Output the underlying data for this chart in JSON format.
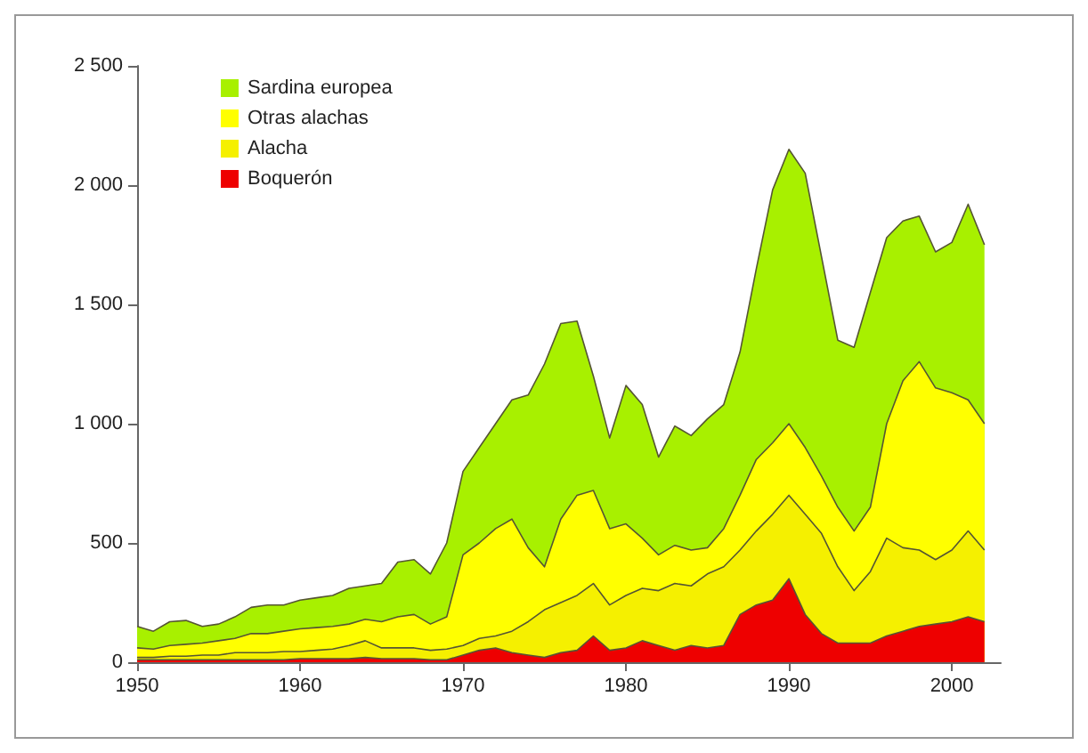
{
  "chart_data": {
    "type": "area",
    "stacked": true,
    "legend": "top left",
    "grid": false,
    "marker": "none",
    "x": [
      1950,
      1951,
      1952,
      1953,
      1954,
      1955,
      1956,
      1957,
      1958,
      1959,
      1960,
      1961,
      1962,
      1963,
      1964,
      1965,
      1966,
      1967,
      1968,
      1969,
      1970,
      1971,
      1972,
      1973,
      1974,
      1975,
      1976,
      1977,
      1978,
      1979,
      1980,
      1981,
      1982,
      1983,
      1984,
      1985,
      1986,
      1987,
      1988,
      1989,
      1990,
      1991,
      1992,
      1993,
      1994,
      1995,
      1996,
      1997,
      1998,
      1999,
      2000,
      2001,
      2002
    ],
    "xlim": [
      1950,
      2003
    ],
    "xticks": [
      1950,
      1960,
      1970,
      1980,
      1990,
      2000
    ],
    "ylim": [
      0,
      2500
    ],
    "yticks": [
      0,
      500,
      {
        "value": 1000,
        "label": "1 000"
      },
      {
        "value": 1500,
        "label": "1 500"
      },
      {
        "value": 2000,
        "label": "2 000"
      },
      {
        "value": 2500,
        "label": "2 500"
      }
    ],
    "series": [
      {
        "name": "Boquerón",
        "color": "#ee0000",
        "values": [
          10,
          10,
          10,
          10,
          10,
          10,
          10,
          10,
          10,
          10,
          15,
          15,
          15,
          15,
          20,
          15,
          15,
          15,
          10,
          10,
          30,
          50,
          60,
          40,
          30,
          20,
          40,
          50,
          110,
          50,
          60,
          90,
          70,
          50,
          70,
          60,
          70,
          200,
          240,
          260,
          350,
          200,
          120,
          80,
          80,
          80,
          110,
          130,
          150,
          160,
          170,
          190,
          170
        ]
      },
      {
        "name": "Alacha",
        "color": "#f5f000",
        "values": [
          10,
          10,
          15,
          15,
          20,
          20,
          30,
          30,
          30,
          35,
          30,
          35,
          40,
          55,
          70,
          45,
          45,
          45,
          40,
          45,
          40,
          50,
          50,
          90,
          140,
          200,
          210,
          230,
          220,
          190,
          220,
          220,
          230,
          280,
          250,
          310,
          330,
          270,
          310,
          360,
          350,
          420,
          420,
          320,
          220,
          300,
          410,
          350,
          320,
          270,
          300,
          360,
          300
        ]
      },
      {
        "name": "Otras alachas",
        "color": "#ffff00",
        "values": [
          40,
          35,
          45,
          50,
          50,
          60,
          60,
          80,
          80,
          85,
          95,
          95,
          95,
          90,
          90,
          110,
          130,
          140,
          110,
          135,
          380,
          400,
          450,
          470,
          310,
          180,
          350,
          420,
          390,
          320,
          300,
          210,
          150,
          160,
          150,
          110,
          160,
          230,
          300,
          300,
          300,
          280,
          240,
          250,
          250,
          270,
          480,
          700,
          790,
          720,
          660,
          550,
          530
        ]
      },
      {
        "name": "Sardina europea",
        "color": "#a8f000",
        "values": [
          90,
          75,
          100,
          100,
          70,
          70,
          90,
          110,
          120,
          110,
          120,
          125,
          130,
          150,
          140,
          160,
          230,
          230,
          210,
          310,
          350,
          400,
          440,
          500,
          640,
          850,
          820,
          730,
          480,
          380,
          580,
          560,
          410,
          500,
          480,
          540,
          520,
          600,
          800,
          1060,
          1150,
          1150,
          920,
          700,
          770,
          900,
          780,
          670,
          610,
          570,
          630,
          820,
          750
        ]
      }
    ]
  }
}
